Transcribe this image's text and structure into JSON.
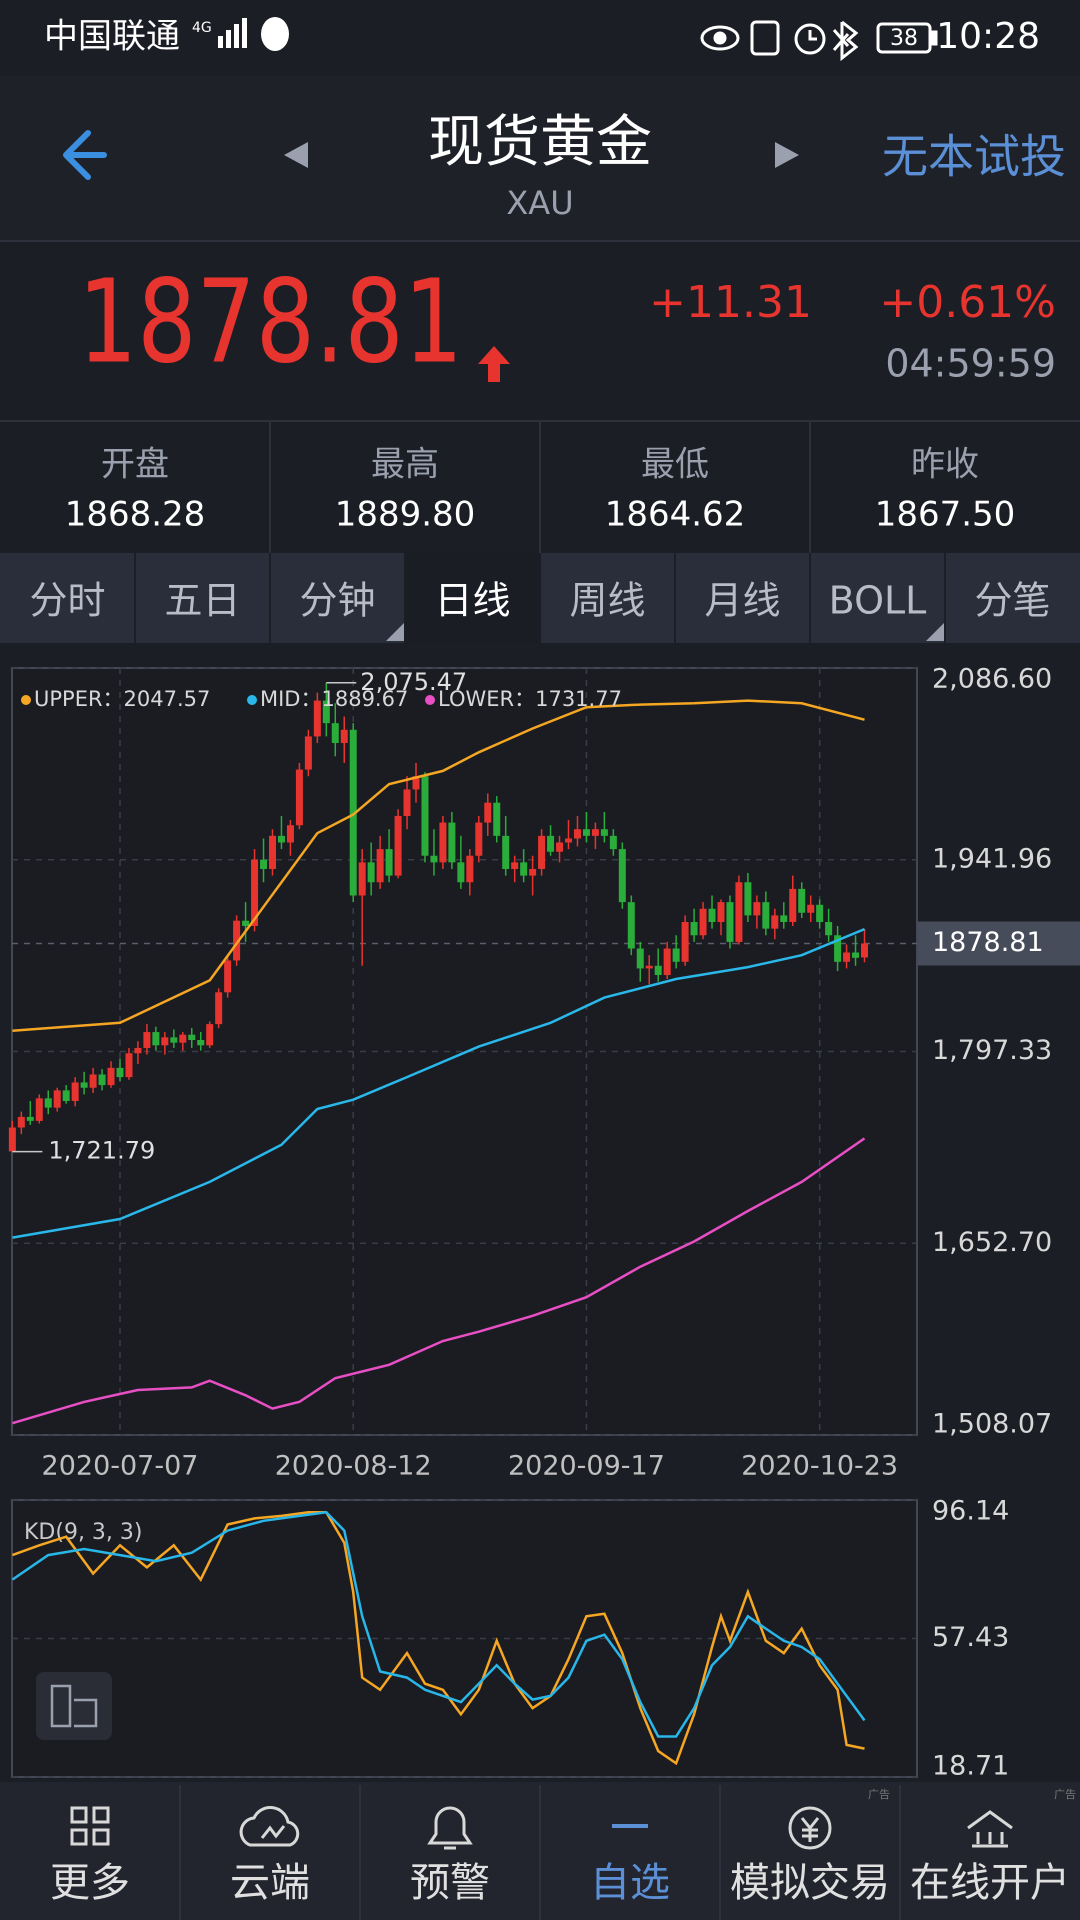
{
  "status_bar": {
    "carrier": "中国联通",
    "network": "4G",
    "battery": "38",
    "time": "10:28"
  },
  "header": {
    "title": "现货黄金",
    "subtitle": "XAU",
    "action": "无本试投"
  },
  "quote": {
    "price": "1878.81",
    "change": "+11.31",
    "change_pct": "+0.61%",
    "time": "04:59:59"
  },
  "stats": [
    {
      "label": "开盘",
      "value": "1868.28"
    },
    {
      "label": "最高",
      "value": "1889.80"
    },
    {
      "label": "最低",
      "value": "1864.62"
    },
    {
      "label": "昨收",
      "value": "1867.50"
    }
  ],
  "tabs": [
    "分时",
    "五日",
    "分钟",
    "日线",
    "周线",
    "月线",
    "BOLL",
    "分笔"
  ],
  "active_tab": 3,
  "chart_data": [
    {
      "type": "candlestick",
      "legend": [
        "UPPER：2047.57",
        "MID：1889.67",
        "LOWER：1731.77"
      ],
      "annotations": {
        "max_label": "2,075.47",
        "min_label": "1,721.79"
      },
      "last": 1878.81,
      "up_color": "#e8342f",
      "down_color": "#2aad3a",
      "ylim": [
        1508.07,
        2086.6
      ],
      "yticks": [
        {
          "value": 2086.6,
          "label": "2,086.60"
        },
        {
          "value": 1941.96,
          "label": "1,941.96"
        },
        {
          "value": 1797.33,
          "label": "1,797.33"
        },
        {
          "value": 1652.7,
          "label": "1,652.70"
        },
        {
          "value": 1508.07,
          "label": "1,508.07"
        }
      ],
      "grid": true,
      "categories": [
        null,
        null,
        null,
        null,
        null,
        null,
        null,
        null,
        null,
        null,
        null,
        null,
        "2020-07-07",
        null,
        null,
        null,
        null,
        null,
        null,
        null,
        null,
        null,
        null,
        null,
        null,
        null,
        null,
        null,
        null,
        null,
        null,
        null,
        null,
        null,
        null,
        null,
        null,
        null,
        "2020-08-12",
        null,
        null,
        null,
        null,
        null,
        null,
        null,
        null,
        null,
        null,
        null,
        null,
        null,
        null,
        null,
        null,
        null,
        null,
        null,
        null,
        null,
        null,
        null,
        null,
        null,
        "2020-09-17",
        null,
        null,
        null,
        null,
        null,
        null,
        null,
        null,
        null,
        null,
        null,
        null,
        null,
        null,
        null,
        null,
        null,
        null,
        null,
        null,
        null,
        null,
        null,
        null,
        null,
        "2020-10-23",
        null,
        null,
        null,
        null,
        null
      ],
      "ohlc": [
        [
          1722,
          1745,
          1721.79,
          1740
        ],
        [
          1740,
          1752,
          1735,
          1748
        ],
        [
          1748,
          1760,
          1742,
          1745
        ],
        [
          1745,
          1765,
          1743,
          1762
        ],
        [
          1762,
          1768,
          1750,
          1755
        ],
        [
          1755,
          1770,
          1752,
          1768
        ],
        [
          1768,
          1772,
          1758,
          1760
        ],
        [
          1760,
          1778,
          1756,
          1774
        ],
        [
          1774,
          1782,
          1765,
          1770
        ],
        [
          1770,
          1785,
          1766,
          1780
        ],
        [
          1780,
          1784,
          1768,
          1772
        ],
        [
          1772,
          1790,
          1770,
          1785
        ],
        [
          1785,
          1792,
          1775,
          1778
        ],
        [
          1778,
          1800,
          1776,
          1796
        ],
        [
          1796,
          1805,
          1788,
          1800
        ],
        [
          1800,
          1818,
          1795,
          1812
        ],
        [
          1812,
          1816,
          1798,
          1802
        ],
        [
          1802,
          1812,
          1795,
          1808
        ],
        [
          1808,
          1814,
          1800,
          1804
        ],
        [
          1804,
          1812,
          1798,
          1810
        ],
        [
          1810,
          1815,
          1800,
          1806
        ],
        [
          1806,
          1812,
          1798,
          1802
        ],
        [
          1802,
          1820,
          1800,
          1818
        ],
        [
          1818,
          1845,
          1815,
          1842
        ],
        [
          1842,
          1870,
          1838,
          1866
        ],
        [
          1866,
          1900,
          1862,
          1896
        ],
        [
          1896,
          1910,
          1880,
          1892
        ],
        [
          1892,
          1950,
          1888,
          1942
        ],
        [
          1942,
          1958,
          1925,
          1935
        ],
        [
          1935,
          1965,
          1930,
          1960
        ],
        [
          1960,
          1975,
          1950,
          1955
        ],
        [
          1955,
          1972,
          1945,
          1968
        ],
        [
          1968,
          2015,
          1965,
          2010
        ],
        [
          2010,
          2040,
          2005,
          2035
        ],
        [
          2035,
          2068,
          2030,
          2062
        ],
        [
          2062,
          2075.47,
          2035,
          2045
        ],
        [
          2045,
          2060,
          2020,
          2030
        ],
        [
          2030,
          2050,
          2015,
          2040
        ],
        [
          2040,
          2045,
          1910,
          1915
        ],
        [
          1915,
          1950,
          1862,
          1940
        ],
        [
          1940,
          1955,
          1915,
          1925
        ],
        [
          1925,
          1960,
          1920,
          1950
        ],
        [
          1950,
          1965,
          1925,
          1930
        ],
        [
          1930,
          1980,
          1928,
          1975
        ],
        [
          1975,
          2005,
          1965,
          1995
        ],
        [
          1995,
          2015,
          1985,
          2005
        ],
        [
          2005,
          2008,
          1940,
          1945
        ],
        [
          1945,
          1965,
          1930,
          1940
        ],
        [
          1940,
          1975,
          1935,
          1970
        ],
        [
          1970,
          1978,
          1935,
          1940
        ],
        [
          1940,
          1960,
          1920,
          1925
        ],
        [
          1925,
          1950,
          1915,
          1945
        ],
        [
          1945,
          1975,
          1940,
          1970
        ],
        [
          1970,
          1992,
          1960,
          1985
        ],
        [
          1985,
          1990,
          1955,
          1960
        ],
        [
          1960,
          1975,
          1930,
          1935
        ],
        [
          1935,
          1945,
          1925,
          1940
        ],
        [
          1940,
          1950,
          1925,
          1930
        ],
        [
          1930,
          1945,
          1915,
          1935
        ],
        [
          1935,
          1965,
          1930,
          1960
        ],
        [
          1960,
          1968,
          1945,
          1948
        ],
        [
          1948,
          1960,
          1940,
          1955
        ],
        [
          1955,
          1972,
          1950,
          1958
        ],
        [
          1958,
          1975,
          1952,
          1965
        ],
        [
          1965,
          1978,
          1955,
          1960
        ],
        [
          1960,
          1970,
          1950,
          1965
        ],
        [
          1965,
          1978,
          1955,
          1960
        ],
        [
          1960,
          1965,
          1945,
          1950
        ],
        [
          1950,
          1955,
          1905,
          1910
        ],
        [
          1910,
          1915,
          1870,
          1875
        ],
        [
          1875,
          1880,
          1850,
          1860
        ],
        [
          1860,
          1870,
          1848,
          1862
        ],
        [
          1862,
          1875,
          1850,
          1855
        ],
        [
          1855,
          1880,
          1852,
          1875
        ],
        [
          1875,
          1885,
          1860,
          1865
        ],
        [
          1865,
          1900,
          1862,
          1895
        ],
        [
          1895,
          1905,
          1880,
          1885
        ],
        [
          1885,
          1910,
          1882,
          1905
        ],
        [
          1905,
          1915,
          1890,
          1895
        ],
        [
          1895,
          1912,
          1885,
          1910
        ],
        [
          1910,
          1915,
          1875,
          1880
        ],
        [
          1880,
          1930,
          1878,
          1925
        ],
        [
          1925,
          1932,
          1895,
          1900
        ],
        [
          1900,
          1915,
          1890,
          1910
        ],
        [
          1910,
          1918,
          1885,
          1890
        ],
        [
          1890,
          1905,
          1882,
          1900
        ],
        [
          1900,
          1910,
          1890,
          1895
        ],
        [
          1895,
          1930,
          1892,
          1920
        ],
        [
          1920,
          1925,
          1898,
          1902
        ],
        [
          1902,
          1915,
          1895,
          1908
        ],
        [
          1908,
          1912,
          1890,
          1895
        ],
        [
          1895,
          1905,
          1880,
          1885
        ],
        [
          1885,
          1892,
          1858,
          1865
        ],
        [
          1865,
          1878,
          1860,
          1872
        ],
        [
          1872,
          1885,
          1862,
          1868
        ],
        [
          1868.28,
          1889.8,
          1864.62,
          1878.81
        ]
      ],
      "series": [
        {
          "name": "UPPER",
          "color": "#f5a623",
          "x": [
            0,
            12,
            22,
            26,
            30,
            34,
            38,
            42,
            48,
            52,
            58,
            64,
            70,
            76,
            82,
            88,
            95
          ],
          "values": [
            1813,
            1819,
            1851,
            1888,
            1925,
            1962,
            1976,
            1999,
            2009,
            2023,
            2041,
            2057,
            2059,
            2060,
            2062,
            2060,
            2047.57
          ]
        },
        {
          "name": "MID",
          "color": "#2ab8ea",
          "x": [
            0,
            12,
            22,
            30,
            34,
            38,
            44,
            52,
            60,
            66,
            74,
            82,
            88,
            95
          ],
          "values": [
            1657,
            1671,
            1699,
            1727,
            1754,
            1761,
            1778,
            1801,
            1819,
            1838,
            1852,
            1861,
            1870,
            1889.67
          ]
        },
        {
          "name": "LOWER",
          "color": "#e84fc4",
          "x": [
            0,
            8,
            14,
            20,
            22,
            26,
            29,
            32,
            36,
            42,
            48,
            52,
            58,
            64,
            70,
            76,
            82,
            88,
            95
          ],
          "values": [
            1517,
            1533,
            1542,
            1544,
            1549,
            1538,
            1528,
            1533,
            1551,
            1561,
            1579,
            1586,
            1598,
            1612,
            1635,
            1654,
            1677,
            1699,
            1731.77
          ]
        }
      ]
    },
    {
      "type": "line",
      "title": "KD(9, 3, 3)",
      "ylim": [
        18.71,
        96.14
      ],
      "yticks": [
        96.14,
        57.43,
        18.71
      ],
      "series": [
        {
          "name": "K",
          "color": "#f5a623",
          "x": [
            0,
            3,
            6,
            9,
            12,
            15,
            18,
            21,
            24,
            27,
            30,
            33,
            35,
            37,
            38,
            39,
            41,
            44,
            46,
            48,
            50,
            52,
            54,
            56,
            58,
            60,
            62,
            64,
            66,
            68,
            70,
            72,
            74,
            76,
            78,
            79,
            80,
            82,
            84,
            86,
            88,
            90,
            92,
            93,
            95
          ],
          "values": [
            80.74,
            83.48,
            85.88,
            75.59,
            83.48,
            77.31,
            83.48,
            73.89,
            89.29,
            91.0,
            91.69,
            92.71,
            92.71,
            84.15,
            70.46,
            46.49,
            43.08,
            53.34,
            44.79,
            43.08,
            36.24,
            43.08,
            56.77,
            44.79,
            37.94,
            41.38,
            51.64,
            63.64,
            64.34,
            53.34,
            37.94,
            25.98,
            22.54,
            36.24,
            55.04,
            63.64,
            56.77,
            70.46,
            56.77,
            53.34,
            60.19,
            49.94,
            43.08,
            27.69,
            26.64
          ]
        },
        {
          "name": "D",
          "color": "#29b6e8",
          "x": [
            0,
            4,
            8,
            12,
            16,
            20,
            24,
            28,
            32,
            35,
            37,
            39,
            41,
            44,
            46,
            48,
            50,
            52,
            54,
            56,
            58,
            60,
            62,
            64,
            66,
            68,
            70,
            72,
            74,
            76,
            78,
            80,
            82,
            84,
            86,
            88,
            90,
            92,
            95
          ],
          "values": [
            73.89,
            80.74,
            82.44,
            80.74,
            79.04,
            81.41,
            87.59,
            90.32,
            91.69,
            92.71,
            87.59,
            63.64,
            48.21,
            46.49,
            43.08,
            41.38,
            39.64,
            44.79,
            49.94,
            44.79,
            40.34,
            41.38,
            46.49,
            56.77,
            58.48,
            51.64,
            39.64,
            30.04,
            30.04,
            37.94,
            49.94,
            55.04,
            63.64,
            60.19,
            56.77,
            55.04,
            51.64,
            44.79,
            34.54
          ]
        }
      ]
    }
  ],
  "nav": [
    "更多",
    "云端",
    "预警",
    "自选",
    "模拟交易",
    "在线开户"
  ],
  "active_nav": 3,
  "ad_tag": "广告"
}
